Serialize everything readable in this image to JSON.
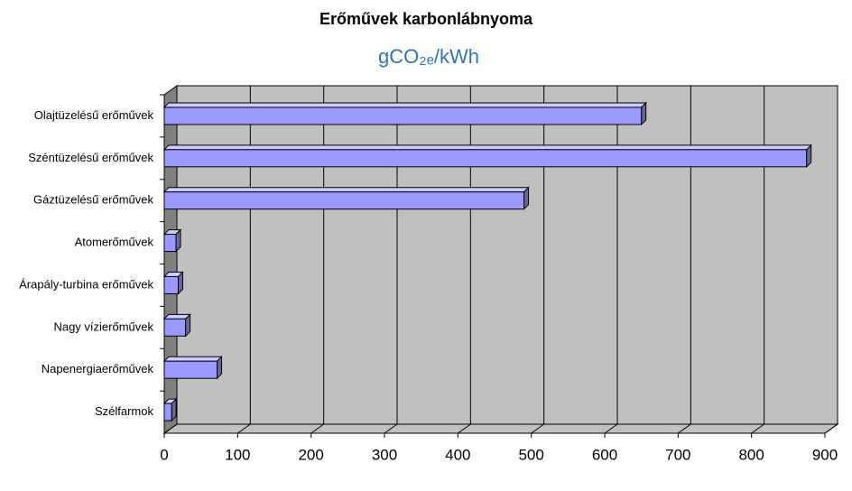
{
  "chart_data": {
    "type": "bar",
    "orientation": "horizontal",
    "title": "Erőművek karbonlábnyoma",
    "subtitle": "gCO₂ₑ/kWh",
    "categories": [
      "Olajtüzelésű erőművek",
      "Széntüzelésű erőművek",
      "Gáztüzelésű erőművek",
      "Atomerőművek",
      "Árapály-turbina erőművek",
      "Nagy vízierőművek",
      "Napenergiaerőművek",
      "Szélfarmok"
    ],
    "values": [
      650,
      875,
      490,
      16,
      19,
      29,
      72,
      10
    ],
    "color": "#9999ff",
    "xlim": [
      0,
      900
    ],
    "xticks": [
      0,
      100,
      200,
      300,
      400,
      500,
      600,
      700,
      800,
      900
    ],
    "grid": true
  }
}
